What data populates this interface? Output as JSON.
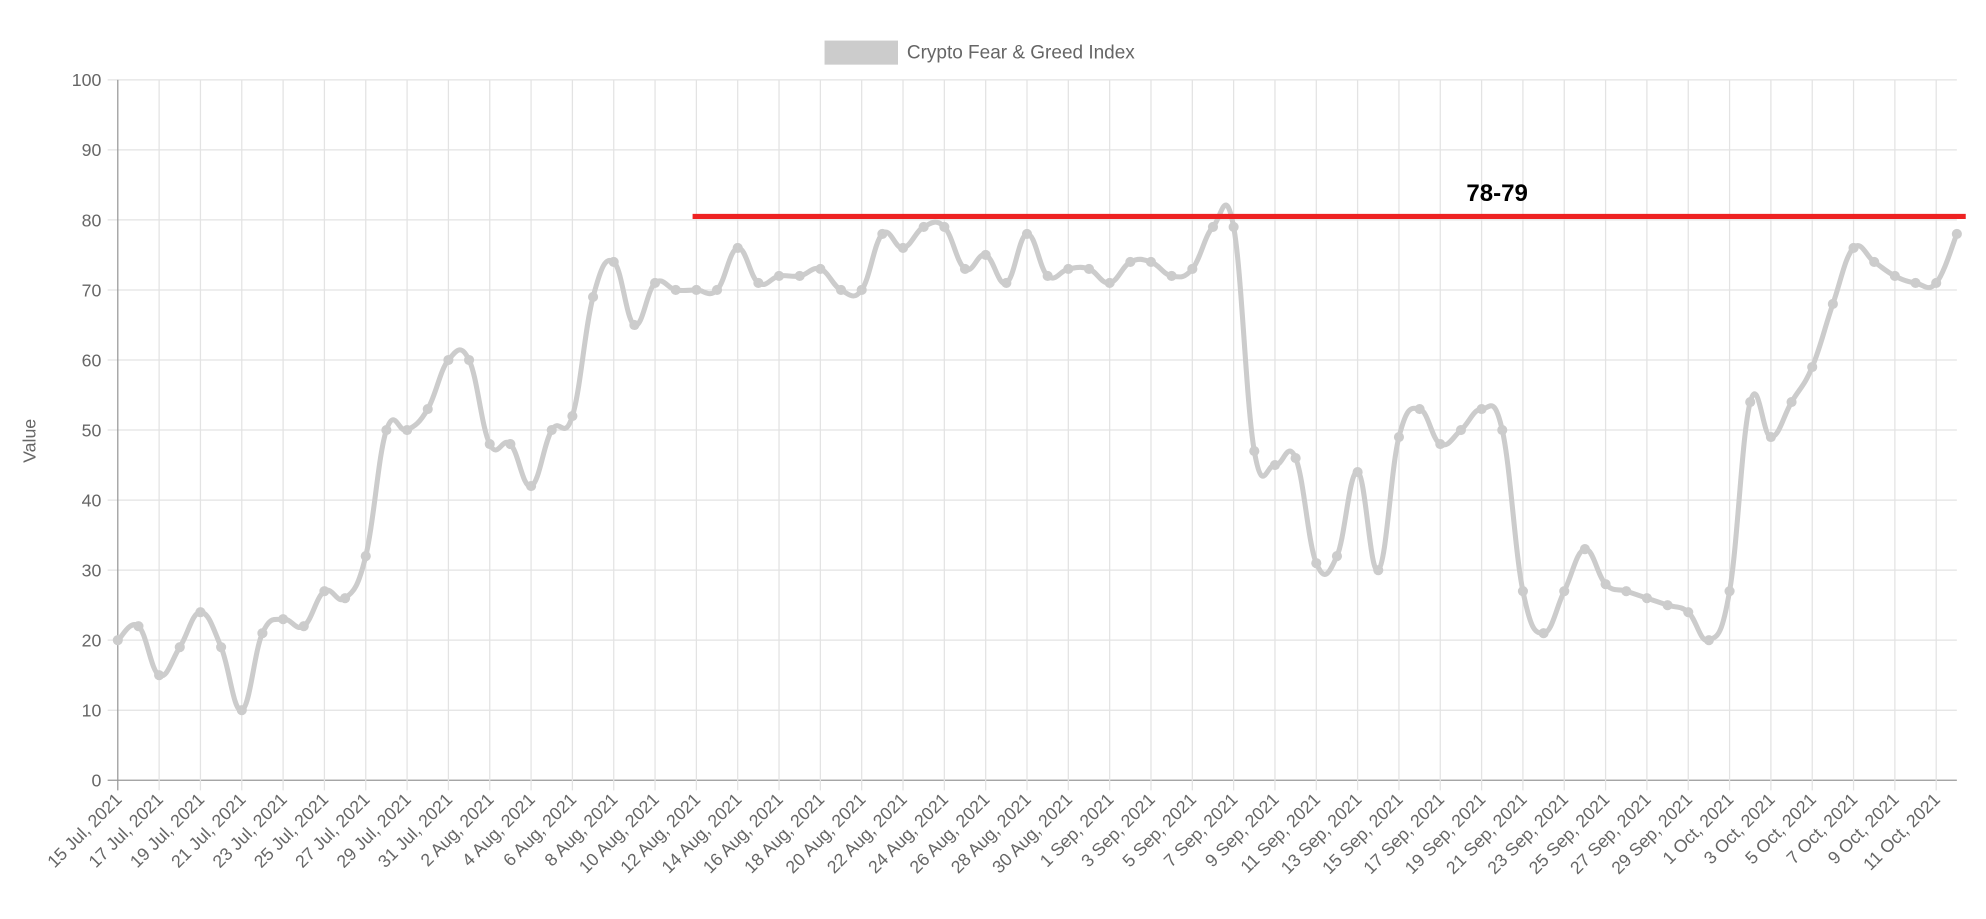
{
  "chart_data": {
    "type": "line",
    "y_label": "Value",
    "categories": [
      "15 Jul, 2021",
      null,
      "17 Jul, 2021",
      null,
      "19 Jul, 2021",
      null,
      "21 Jul, 2021",
      null,
      "23 Jul, 2021",
      null,
      "25 Jul, 2021",
      null,
      "27 Jul, 2021",
      null,
      "29 Jul, 2021",
      null,
      "31 Jul, 2021",
      null,
      "2 Aug, 2021",
      null,
      "4 Aug, 2021",
      null,
      "6 Aug, 2021",
      null,
      "8 Aug, 2021",
      null,
      "10 Aug, 2021",
      null,
      "12 Aug, 2021",
      null,
      "14 Aug, 2021",
      null,
      "16 Aug, 2021",
      null,
      "18 Aug, 2021",
      null,
      "20 Aug, 2021",
      null,
      "22 Aug, 2021",
      null,
      "24 Aug, 2021",
      null,
      "26 Aug, 2021",
      null,
      "28 Aug, 2021",
      null,
      "30 Aug, 2021",
      null,
      "1 Sep, 2021",
      null,
      "3 Sep, 2021",
      null,
      "5 Sep, 2021",
      null,
      "7 Sep, 2021",
      null,
      "9 Sep, 2021",
      null,
      "11 Sep, 2021",
      null,
      "13 Sep, 2021",
      null,
      "15 Sep, 2021",
      null,
      "17 Sep, 2021",
      null,
      "19 Sep, 2021",
      null,
      "21 Sep, 2021",
      null,
      "23 Sep, 2021",
      null,
      "25 Sep, 2021",
      null,
      "27 Sep, 2021",
      null,
      "29 Sep, 2021",
      null,
      "1 Oct, 2021",
      null,
      "3 Oct, 2021",
      null,
      "5 Oct, 2021",
      null,
      "7 Oct, 2021",
      null,
      "9 Oct, 2021",
      null,
      "11 Oct, 2021",
      null
    ],
    "series": [
      {
        "name": "Crypto Fear & Greed Index",
        "color": "#cccccc",
        "values": [
          20,
          22,
          15,
          19,
          24,
          19,
          10,
          21,
          23,
          22,
          27,
          26,
          32,
          50,
          50,
          53,
          60,
          60,
          48,
          48,
          42,
          50,
          52,
          69,
          74,
          65,
          71,
          70,
          70,
          70,
          76,
          71,
          72,
          72,
          73,
          70,
          70,
          78,
          76,
          79,
          79,
          73,
          75,
          71,
          78,
          72,
          73,
          73,
          71,
          74,
          74,
          72,
          73,
          79,
          79,
          47,
          45,
          46,
          31,
          32,
          44,
          30,
          49,
          53,
          48,
          50,
          53,
          50,
          27,
          21,
          27,
          33,
          28,
          27,
          26,
          25,
          24,
          20,
          27,
          54,
          49,
          54,
          59,
          68,
          76,
          74,
          72,
          71,
          71,
          78
        ]
      }
    ],
    "ylim": [
      0,
      100
    ],
    "yticks": [
      0,
      10,
      20,
      30,
      40,
      50,
      60,
      70,
      80,
      90,
      100
    ],
    "grid": true,
    "legend": "top",
    "annotation": {
      "label": "78-79",
      "value": 80.5,
      "from": "12 Aug, 2021",
      "color": "#ee2222"
    }
  }
}
